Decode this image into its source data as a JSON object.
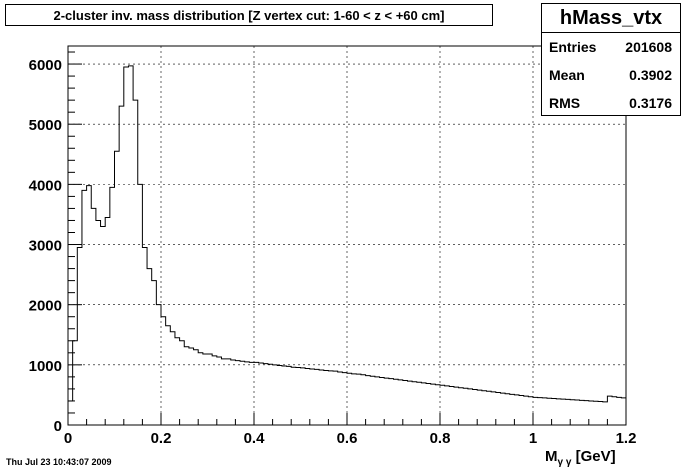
{
  "chart_data": {
    "type": "histogram",
    "title": "2-cluster inv. mass distribution [Z vertex cut: 1-60 < z < +60 cm]",
    "xlabel_main": "M",
    "xlabel_sub": "γ γ",
    "xlabel_unit": " [GeV]",
    "ylabel": "",
    "xlim": [
      0,
      1.2
    ],
    "ylim": [
      0,
      6300
    ],
    "xticks": [
      0,
      0.2,
      0.4,
      0.6,
      0.8,
      1.0,
      1.2
    ],
    "xtick_labels": [
      "0",
      "0.2",
      "0.4",
      "0.6",
      "0.8",
      "1",
      "1.2"
    ],
    "yticks": [
      0,
      1000,
      2000,
      3000,
      4000,
      5000,
      6000
    ],
    "ytick_labels": [
      "0",
      "1000",
      "2000",
      "3000",
      "4000",
      "5000",
      "6000"
    ],
    "grid": true,
    "bin_width": 0.01,
    "values": [
      400,
      1400,
      2950,
      3900,
      3980,
      3600,
      3400,
      3300,
      3450,
      3950,
      4550,
      5300,
      5950,
      5970,
      5400,
      4000,
      2950,
      2600,
      2400,
      2000,
      1800,
      1650,
      1550,
      1450,
      1400,
      1300,
      1280,
      1250,
      1200,
      1180,
      1180,
      1150,
      1130,
      1100,
      1100,
      1080,
      1070,
      1060,
      1050,
      1040,
      1040,
      1030,
      1020,
      1010,
      1000,
      990,
      980,
      975,
      960,
      955,
      950,
      940,
      930,
      925,
      915,
      905,
      900,
      895,
      880,
      870,
      860,
      850,
      845,
      835,
      820,
      810,
      800,
      790,
      780,
      770,
      760,
      750,
      740,
      730,
      720,
      710,
      700,
      690,
      680,
      670,
      660,
      650,
      640,
      630,
      620,
      610,
      600,
      590,
      580,
      570,
      560,
      550,
      540,
      530,
      520,
      510,
      500,
      490,
      480,
      470,
      460,
      455,
      450,
      445,
      440,
      435,
      430,
      425,
      420,
      415,
      410,
      405,
      400,
      395,
      390,
      385,
      480,
      470,
      460,
      450
    ]
  },
  "stats": {
    "name": "hMass_vtx",
    "rows": [
      {
        "label": "Entries",
        "value": "201608"
      },
      {
        "label": "Mean",
        "value": "0.3902"
      },
      {
        "label": "RMS",
        "value": "0.3176"
      }
    ]
  },
  "datestamp": "Thu Jul 23 10:43:07 2009"
}
